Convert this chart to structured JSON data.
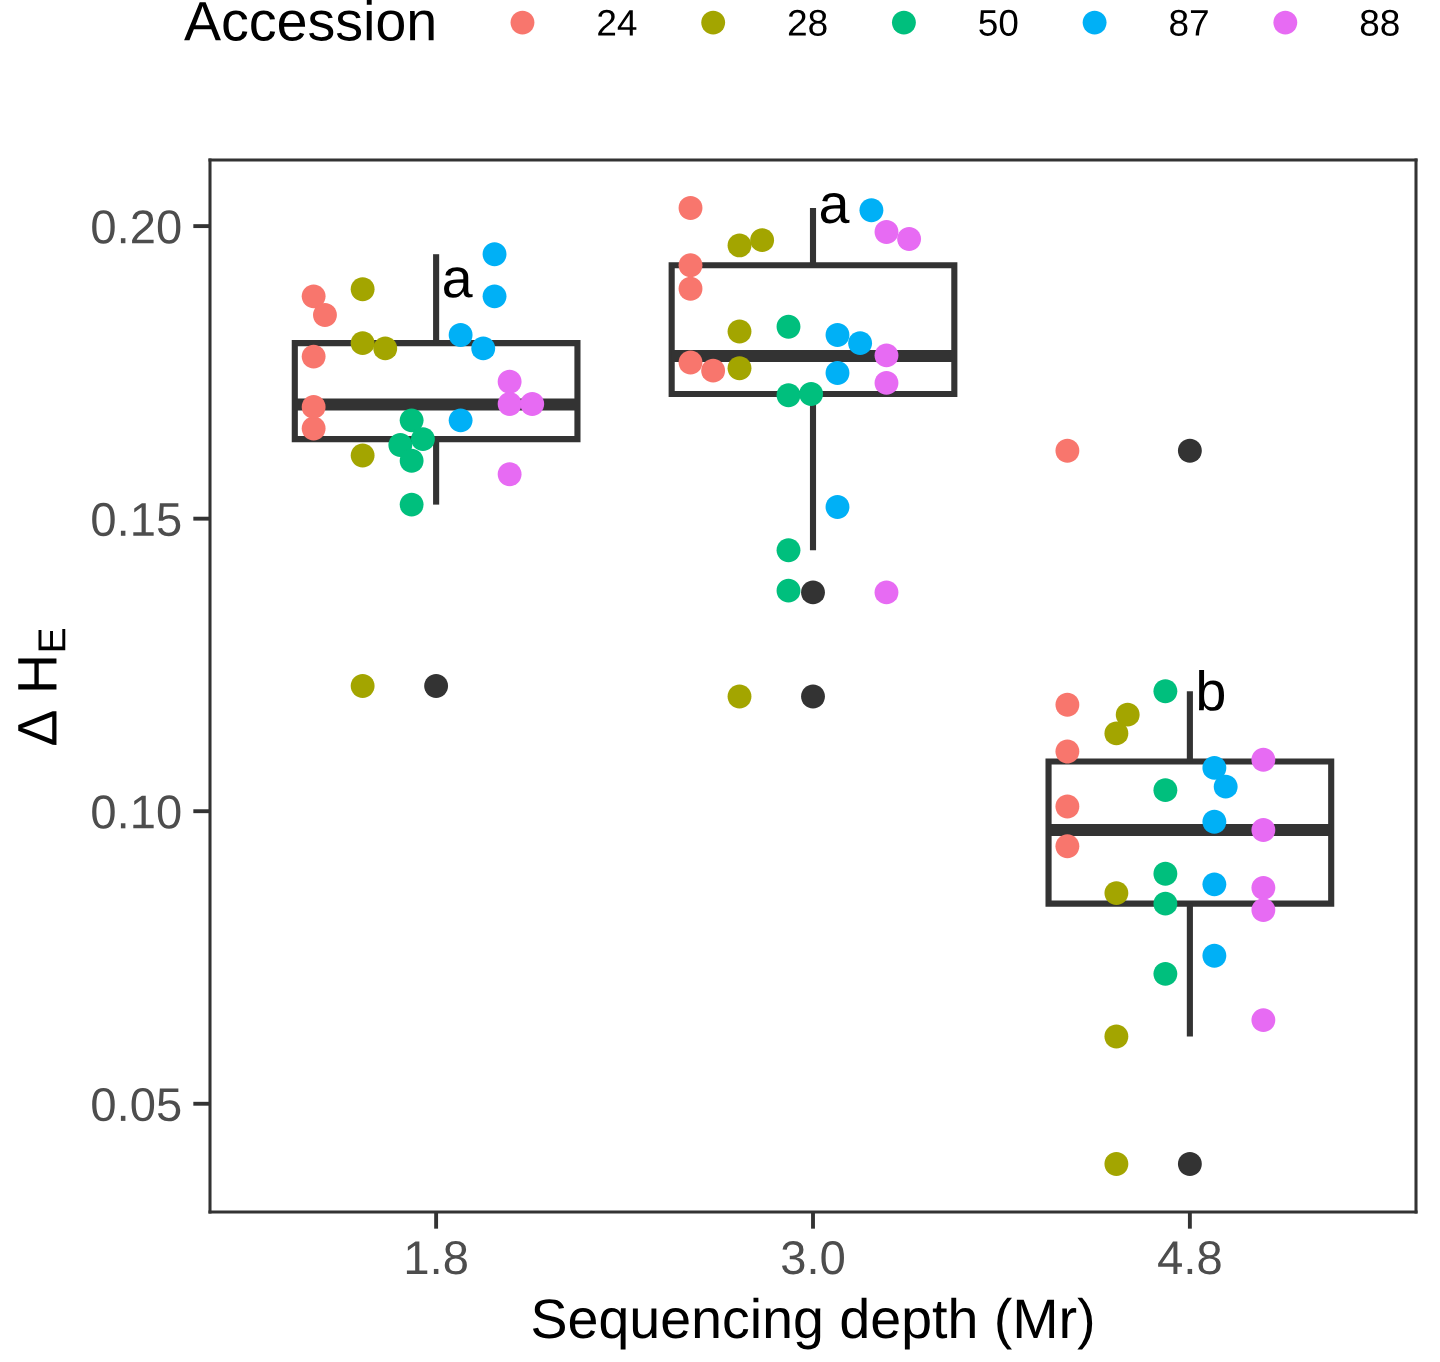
{
  "chart_data": {
    "type": "box",
    "xlabel": "Sequencing depth (Mr)",
    "ylabel": "Δ H$_{E}$",
    "categories": [
      "1.8",
      "3.0",
      "4.8"
    ],
    "color": "#333333",
    "marker": "circle",
    "legend": "top",
    "legend_title": "Accession",
    "ylim": [
      0.0315,
      0.2113
    ],
    "yticks": [
      0.05,
      {
        "value": 0.1,
        "label": "0.10"
      },
      0.15,
      {
        "value": 0.2,
        "label": "0.20"
      }
    ],
    "boxes": [
      {
        "low": 0.1524,
        "q1": 0.1636,
        "median": 0.1695,
        "q3": 0.18,
        "high": 0.1952,
        "outliers": [
          0.1214
        ]
      },
      {
        "low": 0.1446,
        "q1": 0.1713,
        "median": 0.1778,
        "q3": 0.1933,
        "high": 0.2031,
        "outliers": [
          0.1374,
          0.1196
        ]
      },
      {
        "low": 0.0615,
        "q1": 0.0842,
        "median": 0.0968,
        "q3": 0.1085,
        "high": 0.1205,
        "outliers": [
          0.1616,
          0.0397
        ]
      }
    ],
    "series": [
      {
        "name": "24",
        "type": "scatter",
        "color": "#f8766d",
        "x": [
          "1.8",
          "1.8",
          "1.8",
          "1.8",
          "1.8",
          "3.0",
          "3.0",
          "3.0",
          "3.0",
          "3.0",
          "4.8",
          "4.8",
          "4.8",
          "4.8",
          "4.8"
        ],
        "values": [
          0.188,
          0.1848,
          0.1777,
          0.1654,
          0.1691,
          0.2031,
          0.1933,
          0.1893,
          0.1767,
          0.1753,
          0.1616,
          0.1182,
          0.1102,
          0.1008,
          0.094
        ]
      },
      {
        "name": "28",
        "type": "scatter",
        "color": "#a3a500",
        "x": [
          "1.8",
          "1.8",
          "1.8",
          "1.8",
          "1.8",
          "3.0",
          "3.0",
          "3.0",
          "3.0",
          "3.0",
          "4.8",
          "4.8",
          "4.8",
          "4.8",
          "4.8"
        ],
        "values": [
          0.1892,
          0.18,
          0.1791,
          0.1608,
          0.1214,
          0.1967,
          0.1976,
          0.182,
          0.1757,
          0.1196,
          0.1133,
          0.1165,
          0.086,
          0.0615,
          0.0397
        ]
      },
      {
        "name": "50",
        "type": "scatter",
        "color": "#00bf7d",
        "x": [
          "1.8",
          "1.8",
          "1.8",
          "1.8",
          "1.8",
          "3.0",
          "3.0",
          "3.0",
          "3.0",
          "3.0",
          "4.8",
          "4.8",
          "4.8",
          "4.8",
          "4.8"
        ],
        "values": [
          0.1668,
          0.1636,
          0.1626,
          0.1599,
          0.1524,
          0.1828,
          0.1711,
          0.1713,
          0.1446,
          0.1377,
          0.1205,
          0.1036,
          0.0893,
          0.0842,
          0.0722
        ]
      },
      {
        "name": "87",
        "type": "scatter",
        "color": "#00b0f6",
        "x": [
          "1.8",
          "1.8",
          "1.8",
          "1.8",
          "1.8",
          "3.0",
          "3.0",
          "3.0",
          "3.0",
          "3.0",
          "4.8",
          "4.8",
          "4.8",
          "4.8",
          "4.8"
        ],
        "values": [
          0.1952,
          0.188,
          0.1814,
          0.1791,
          0.1668,
          0.2027,
          0.1814,
          0.18,
          0.1749,
          0.152,
          0.1074,
          0.1042,
          0.0982,
          0.0875,
          0.0753
        ]
      },
      {
        "name": "88",
        "type": "scatter",
        "color": "#e76bf3",
        "x": [
          "1.8",
          "1.8",
          "1.8",
          "1.8",
          "3.0",
          "3.0",
          "3.0",
          "3.0",
          "3.0",
          "4.8",
          "4.8",
          "4.8",
          "4.8",
          "4.8"
        ],
        "values": [
          0.1734,
          0.1696,
          0.1696,
          0.1576,
          0.199,
          0.1978,
          0.1779,
          0.1732,
          0.1374,
          0.1088,
          0.0968,
          0.0869,
          0.0831,
          0.0643
        ]
      }
    ],
    "annotations": [
      {
        "text": "a",
        "x": "1.8",
        "y": 0.1903
      },
      {
        "text": "a",
        "x": "3.0",
        "y": 0.203
      },
      {
        "text": "b",
        "x": "4.8",
        "y": 0.1197
      }
    ]
  }
}
